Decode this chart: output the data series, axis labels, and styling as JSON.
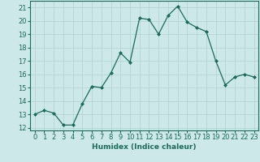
{
  "x": [
    0,
    1,
    2,
    3,
    4,
    5,
    6,
    7,
    8,
    9,
    10,
    11,
    12,
    13,
    14,
    15,
    16,
    17,
    18,
    19,
    20,
    21,
    22,
    23
  ],
  "y": [
    13,
    13.3,
    13.1,
    12.2,
    12.2,
    13.8,
    15.1,
    15.0,
    16.1,
    17.6,
    16.9,
    20.2,
    20.1,
    19.0,
    20.4,
    21.1,
    19.9,
    19.5,
    19.2,
    17.0,
    15.2,
    15.8,
    16.0,
    15.8
  ],
  "xlabel": "Humidex (Indice chaleur)",
  "xlim": [
    -0.5,
    23.5
  ],
  "ylim": [
    11.8,
    21.5
  ],
  "yticks": [
    12,
    13,
    14,
    15,
    16,
    17,
    18,
    19,
    20,
    21
  ],
  "xticks": [
    0,
    1,
    2,
    3,
    4,
    5,
    6,
    7,
    8,
    9,
    10,
    11,
    12,
    13,
    14,
    15,
    16,
    17,
    18,
    19,
    20,
    21,
    22,
    23
  ],
  "line_color": "#1a6b5a",
  "marker_color": "#1a6b5a",
  "bg_color": "#cde8e8",
  "grid_color": "#afd0d0",
  "axis_color": "#1a6b5a",
  "label_color": "#1a6b5a",
  "axis_fontsize": 6.5,
  "tick_fontsize": 6.0
}
